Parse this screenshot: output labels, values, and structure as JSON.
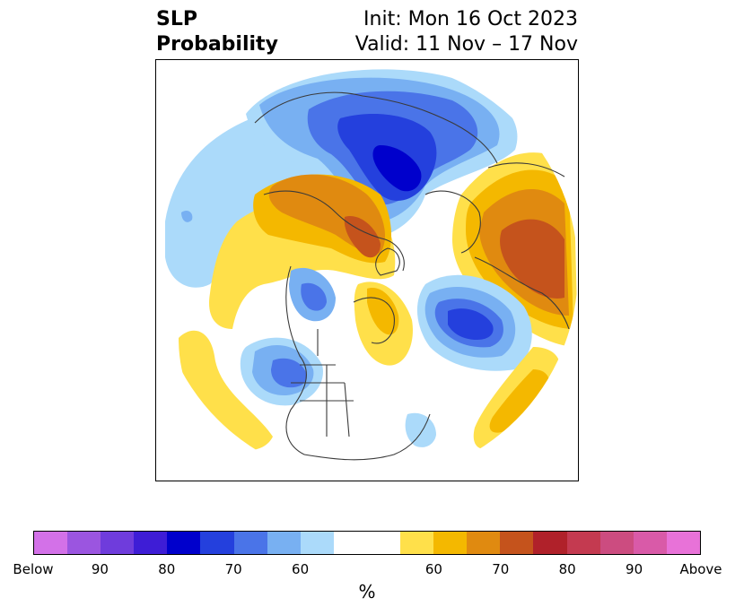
{
  "title": {
    "left_line1": "SLP",
    "left_line2": "Probability",
    "right_line1": "Init: Mon 16 Oct 2023",
    "right_line2": "Valid: 11 Nov – 17 Nov"
  },
  "colorbar": {
    "colors": [
      "#d371e8",
      "#9b55e0",
      "#6f3cdc",
      "#3e1dd6",
      "#0000cc",
      "#2440dd",
      "#4a74e8",
      "#78b0f2",
      "#abdafa",
      "#ffffff",
      "#ffe04a",
      "#f4b800",
      "#e08a10",
      "#c5531c",
      "#b0212a",
      "#c43a50",
      "#cc4c80",
      "#d95aa8",
      "#e872d8"
    ],
    "tick_labels": [
      "Below",
      "90",
      "80",
      "70",
      "60",
      "60",
      "70",
      "80",
      "90",
      "Above"
    ],
    "unit": "%"
  },
  "map": {
    "palette": {
      "blue1": "#abdafa",
      "blue2": "#78b0f2",
      "blue3": "#4a74e8",
      "blue4": "#2440dd",
      "blue5": "#0000cc",
      "yellow1": "#ffe04a",
      "yellow2": "#f4b800",
      "orange1": "#e08a10",
      "orange2": "#c5531c",
      "coast": "#3a3a3a"
    }
  }
}
